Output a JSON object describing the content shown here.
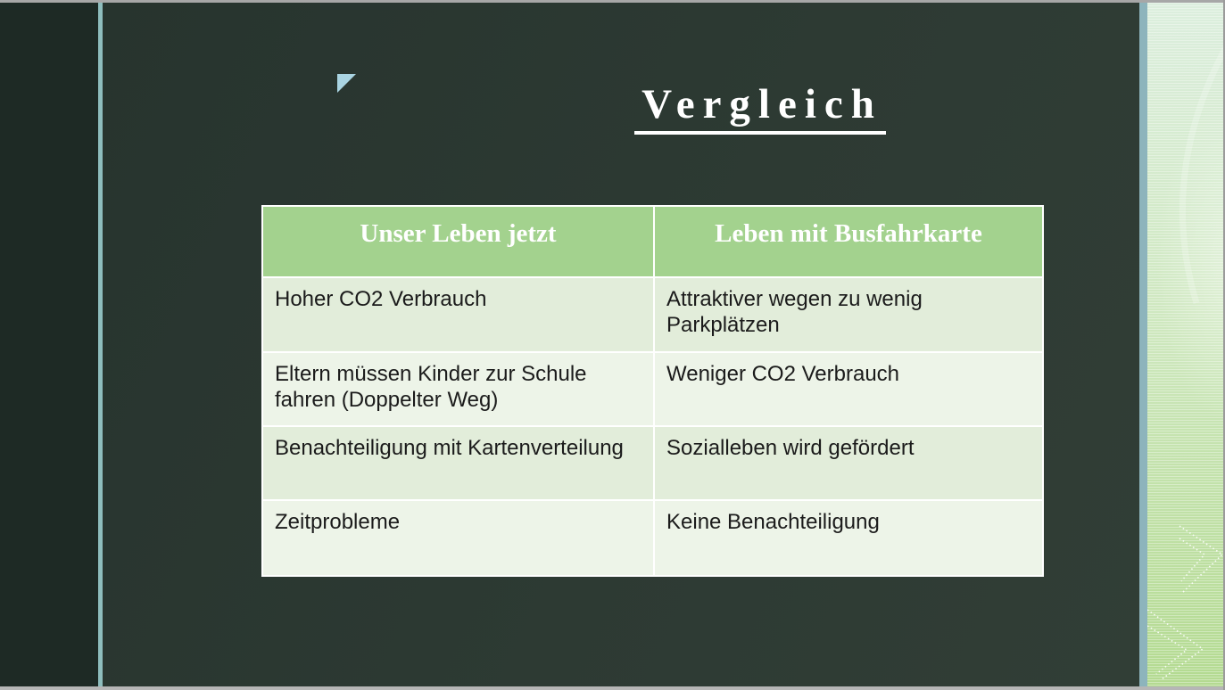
{
  "slide": {
    "title": "Vergleich",
    "table": {
      "headers": [
        "Unser Leben jetzt",
        "Leben mit Busfahrkarte"
      ],
      "rows": [
        [
          "Hoher CO2 Verbrauch",
          "Attraktiver wegen zu wenig Parkplätzen"
        ],
        [
          "Eltern müssen Kinder zur Schule fahren (Doppelter Weg)",
          "Weniger CO2 Verbrauch"
        ],
        [
          "Benachteiligung mit Kartenverteilung",
          "Sozialleben wird gefördert"
        ],
        [
          "Zeitprobleme",
          "Keine Benachteiligung"
        ]
      ]
    },
    "decorations": {
      "marker_icon": "triangle-marker-icon",
      "strip_icon": "chevron-right-outline-icon"
    }
  },
  "colors": {
    "slide_bg": "#2d3a33",
    "left_panel_bg": "#1e2a25",
    "accent_line": "#8ebdbd",
    "accent_line2": "#8db4bc",
    "strip_top": "#dceede",
    "strip_bottom": "#b3da90",
    "header_bg": "#a3d28e",
    "row_odd_bg": "#e2edda",
    "row_even_bg": "#edf4e8",
    "marker": "#a9d4e2"
  }
}
